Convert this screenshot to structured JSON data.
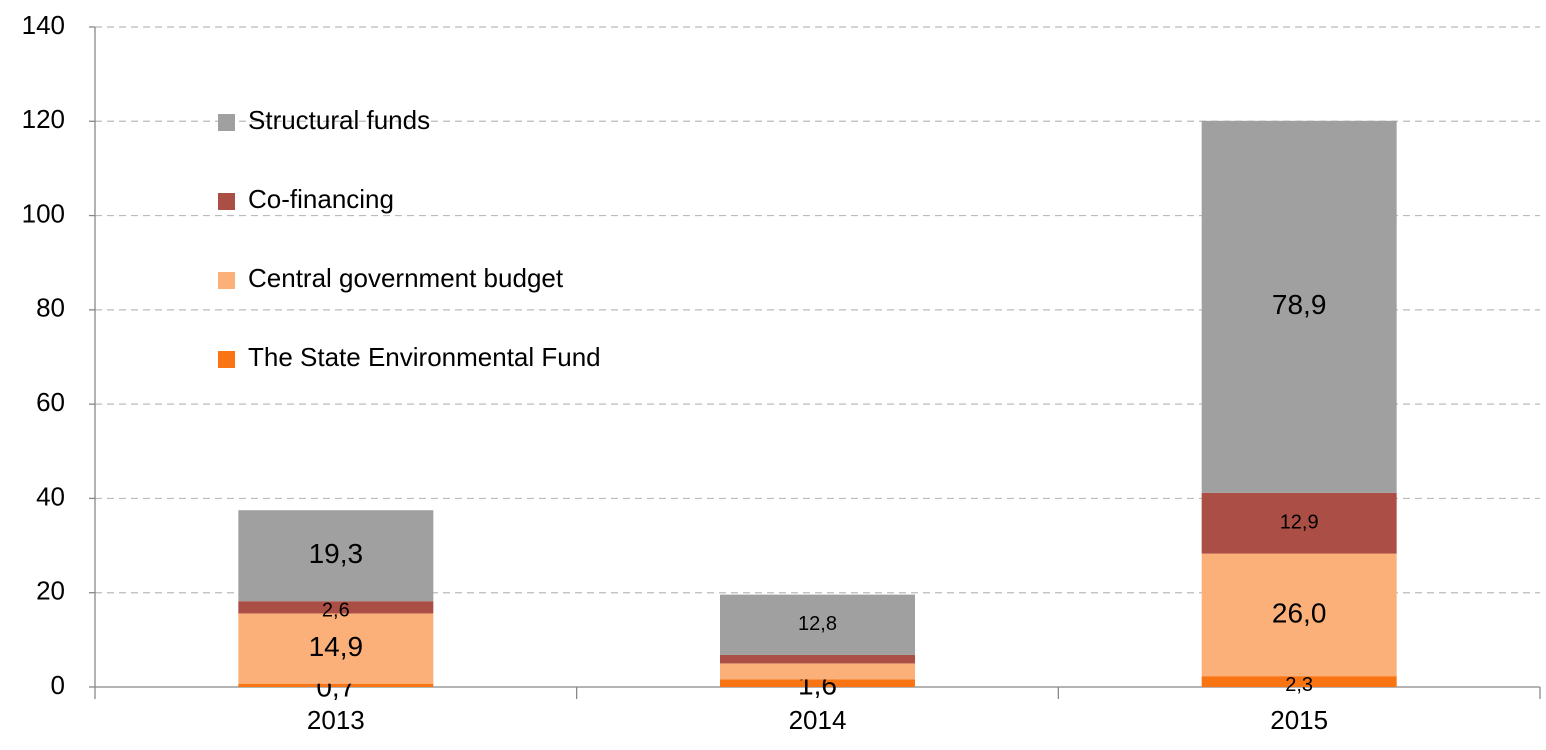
{
  "chart_data": {
    "type": "stacked_bar",
    "categories": [
      "2013",
      "2014",
      "2015"
    ],
    "series": [
      {
        "name": "The State Environmental Fund",
        "color": "#f97514",
        "values": [
          0.7,
          1.6,
          2.3
        ],
        "value_labels": [
          "0,7",
          "1,6",
          "2,3"
        ]
      },
      {
        "name": "Central government budget",
        "color": "#fbb07a",
        "values": [
          14.9,
          3.4,
          26.0
        ],
        "value_labels": [
          "14,9",
          null,
          "26,0"
        ]
      },
      {
        "name": "Co-financing",
        "color": "#ab4e45",
        "values": [
          2.6,
          1.8,
          12.9
        ],
        "value_labels": [
          "2,6",
          null,
          "12,9"
        ]
      },
      {
        "name": "Structural funds",
        "color": "#a0a0a0",
        "values": [
          19.3,
          12.8,
          78.9
        ],
        "value_labels": [
          "19,3",
          "12,8",
          "78,9"
        ]
      }
    ],
    "ylim": [
      0,
      140
    ],
    "yticks": [
      0,
      20,
      40,
      60,
      80,
      100,
      120,
      140
    ],
    "grid": true,
    "legend": "upper left"
  }
}
